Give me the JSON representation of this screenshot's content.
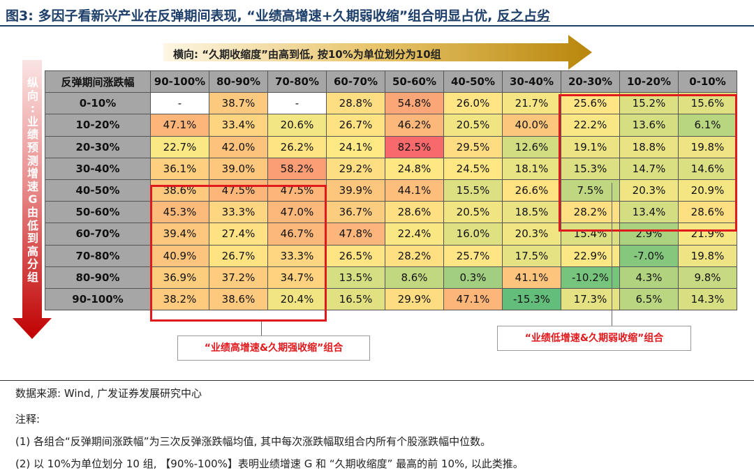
{
  "title": {
    "prefix": "图3:",
    "main": "多因子看新兴产业在反弹期间表现, “业绩高增速+久期弱收缩”组合明显占优, ",
    "underlined": "反之占劣"
  },
  "arrows": {
    "horizontal_label": "横向: “久期收缩度”由高到低, 按10%为单位划分为10组",
    "vertical_label_chars": [
      "纵",
      "向",
      ":",
      "业",
      "绩",
      "预",
      "测",
      "增",
      "速",
      "G",
      "由",
      "低",
      "到",
      "高",
      "分",
      "组"
    ]
  },
  "chart_data": {
    "type": "heatmap",
    "corner_label": "反弹期间涨跌幅",
    "columns": [
      "90-100%",
      "80-90%",
      "70-80%",
      "60-70%",
      "50-60%",
      "40-50%",
      "30-40%",
      "20-30%",
      "10-20%",
      "0-10%"
    ],
    "rows": [
      "0-10%",
      "10-20%",
      "20-30%",
      "30-40%",
      "40-50%",
      "50-60%",
      "60-70%",
      "70-80%",
      "80-90%",
      "90-100%"
    ],
    "values": [
      [
        null,
        38.7,
        null,
        28.8,
        54.8,
        26.0,
        21.7,
        25.6,
        15.2,
        15.6
      ],
      [
        47.1,
        33.4,
        20.6,
        26.7,
        46.2,
        20.5,
        40.0,
        22.2,
        13.6,
        6.1
      ],
      [
        22.7,
        42.0,
        26.2,
        24.1,
        82.5,
        29.5,
        12.6,
        19.1,
        18.8,
        19.8
      ],
      [
        36.1,
        39.0,
        58.2,
        29.2,
        24.8,
        24.5,
        18.1,
        15.3,
        14.7,
        14.6
      ],
      [
        38.6,
        47.5,
        47.5,
        39.9,
        44.1,
        15.5,
        26.6,
        7.5,
        20.3,
        20.9
      ],
      [
        45.3,
        33.3,
        47.0,
        36.7,
        28.6,
        20.5,
        18.5,
        28.2,
        13.4,
        28.6
      ],
      [
        39.4,
        27.4,
        46.7,
        47.8,
        22.4,
        16.0,
        20.3,
        15.4,
        2.9,
        21.9
      ],
      [
        40.9,
        26.7,
        33.3,
        26.5,
        28.2,
        25.7,
        17.5,
        22.9,
        -7.0,
        19.8
      ],
      [
        36.9,
        37.2,
        34.7,
        13.5,
        8.6,
        0.3,
        41.1,
        -10.2,
        4.3,
        9.8
      ],
      [
        38.2,
        38.6,
        20.4,
        16.5,
        29.9,
        47.1,
        -15.3,
        17.3,
        6.5,
        14.3
      ]
    ],
    "missing_label": "-",
    "unit": "%",
    "color_scale": {
      "low": "#63be7b",
      "mid": "#ffe984",
      "high": "#f8696b"
    }
  },
  "annotations": {
    "left_box_label": "“业绩高增速&久期强收缩”组合",
    "right_box_label": "“业绩低增速&久期弱收缩”组合",
    "box_color": "#e0191d"
  },
  "footer": {
    "source": "数据来源: Wind, 广发证券发展研究中心",
    "notes_title": "注释:",
    "note1": "(1) 各组合“反弹期间涨跌幅”为三次反弹涨跌幅均值, 其中每次涨跌幅取组合内所有个股涨跌幅中位数。",
    "note2": "(2) 以 10%为单位划分 10 组, 【90%-100%】表明业绩增速 G 和 “久期收缩度” 最高的前 10%, 以此类推。"
  }
}
